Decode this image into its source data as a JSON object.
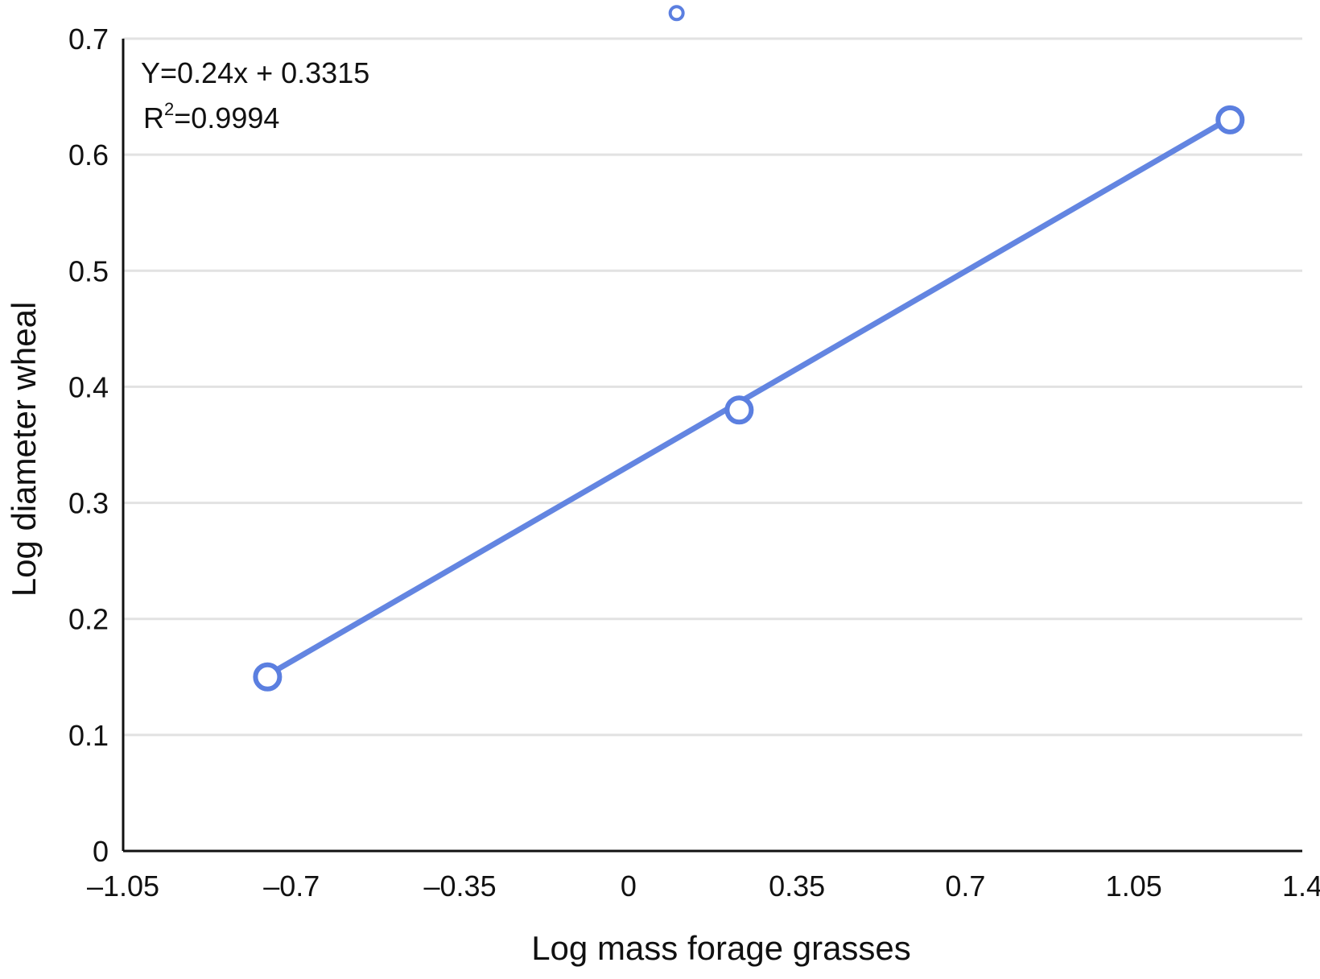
{
  "chart_data": {
    "type": "scatter",
    "xlabel": "Log mass forage grasses",
    "ylabel": "Log diameter wheal",
    "xlim": [
      -1.05,
      1.4
    ],
    "ylim": [
      0,
      0.7
    ],
    "x_ticks": [
      "–1.05",
      "–0.7",
      "–0.35",
      "0",
      "0.35",
      "0.7",
      "1.05",
      "1.4"
    ],
    "x_tick_values": [
      -1.05,
      -0.7,
      -0.35,
      0,
      0.35,
      0.7,
      1.05,
      1.4
    ],
    "y_ticks": [
      "0",
      "0.1",
      "0.2",
      "0.3",
      "0.4",
      "0.5",
      "0.6",
      "0.7"
    ],
    "y_tick_values": [
      0,
      0.1,
      0.2,
      0.3,
      0.4,
      0.5,
      0.6,
      0.7
    ],
    "grid": "horizontal",
    "series": [
      {
        "x": [
          -0.75,
          0.23,
          1.25
        ],
        "y": [
          0.15,
          0.38,
          0.63
        ],
        "color": "#5b7fe0"
      }
    ],
    "trendline": {
      "slope": 0.24,
      "intercept": 0.3315,
      "x_range": [
        -0.75,
        1.25
      ],
      "color": "#5b7fe0"
    },
    "annotation": {
      "equation": "Y=0.24x + 0.3315",
      "r2_prefix": "R",
      "r2_sup": "2",
      "r2_value": "=0.9994"
    },
    "legend_marker": {
      "x": 0.1,
      "y": 0.722,
      "color": "#5b7fe0"
    }
  }
}
